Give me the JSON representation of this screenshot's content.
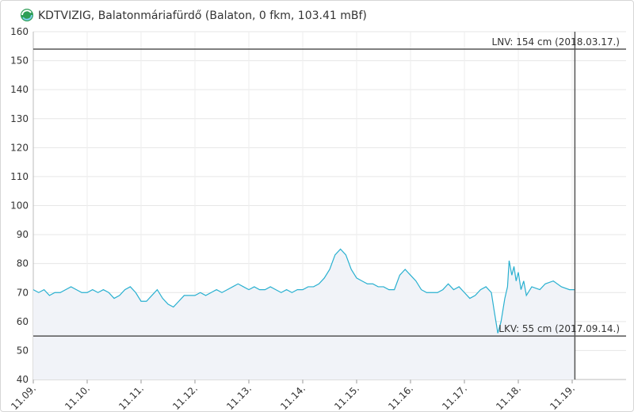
{
  "chart_data": {
    "type": "line",
    "title": "KDTVIZIG, Balatonmáriafürdő (Balaton, 0 fkm, 103.41 mBf)",
    "x": [
      0,
      0.1,
      0.2,
      0.3,
      0.4,
      0.5,
      0.6,
      0.7,
      0.8,
      0.9,
      1.0,
      1.1,
      1.2,
      1.3,
      1.4,
      1.5,
      1.6,
      1.7,
      1.8,
      1.9,
      2.0,
      2.1,
      2.2,
      2.3,
      2.4,
      2.5,
      2.6,
      2.7,
      2.8,
      2.9,
      3.0,
      3.1,
      3.2,
      3.3,
      3.4,
      3.5,
      3.6,
      3.7,
      3.8,
      3.9,
      4.0,
      4.1,
      4.2,
      4.3,
      4.4,
      4.5,
      4.6,
      4.7,
      4.8,
      4.9,
      5.0,
      5.1,
      5.2,
      5.3,
      5.4,
      5.5,
      5.6,
      5.7,
      5.8,
      5.9,
      6.0,
      6.1,
      6.2,
      6.3,
      6.4,
      6.5,
      6.6,
      6.7,
      6.8,
      6.9,
      7.0,
      7.1,
      7.2,
      7.3,
      7.4,
      7.5,
      7.6,
      7.7,
      7.8,
      7.9,
      8.0,
      8.1,
      8.2,
      8.3,
      8.4,
      8.5,
      8.55,
      8.62,
      8.68,
      8.75,
      8.8,
      8.83,
      8.88,
      8.92,
      8.96,
      9.0,
      9.05,
      9.1,
      9.15,
      9.25,
      9.4,
      9.5,
      9.65,
      9.8,
      9.95,
      10.05
    ],
    "series": [
      {
        "color": "#29b0d0",
        "values": [
          71,
          70,
          71,
          69,
          70,
          70,
          71,
          72,
          71,
          70,
          70,
          71,
          70,
          71,
          70,
          68,
          69,
          71,
          72,
          70,
          67,
          67,
          69,
          71,
          68,
          66,
          65,
          67,
          69,
          69,
          69,
          70,
          69,
          70,
          71,
          70,
          71,
          72,
          73,
          72,
          71,
          72,
          71,
          71,
          72,
          71,
          70,
          71,
          70,
          71,
          71,
          72,
          72,
          73,
          75,
          78,
          83,
          85,
          83,
          78,
          75,
          74,
          73,
          73,
          72,
          72,
          71,
          71,
          76,
          78,
          76,
          74,
          71,
          70,
          70,
          70,
          71,
          73,
          71,
          72,
          70,
          68,
          69,
          71,
          72,
          70,
          64,
          56,
          60,
          68,
          72,
          81,
          76,
          79,
          74,
          77,
          71,
          74,
          69,
          72,
          71,
          73,
          74,
          72,
          71,
          71
        ]
      }
    ],
    "xlim": [
      0,
      11
    ],
    "xticks": [
      {
        "value": 0,
        "label": "11.09."
      },
      {
        "value": 1,
        "label": "11.10."
      },
      {
        "value": 2,
        "label": "11.11."
      },
      {
        "value": 3,
        "label": "11.12."
      },
      {
        "value": 4,
        "label": "11.13."
      },
      {
        "value": 5,
        "label": "11.14."
      },
      {
        "value": 6,
        "label": "11.15."
      },
      {
        "value": 7,
        "label": "11.16."
      },
      {
        "value": 8,
        "label": "11.17."
      },
      {
        "value": 9,
        "label": "11.18."
      },
      {
        "value": 10,
        "label": "11.19."
      }
    ],
    "ylim": [
      40,
      160
    ],
    "yticks": [
      40,
      50,
      60,
      70,
      80,
      90,
      100,
      110,
      120,
      130,
      140,
      150,
      160
    ],
    "grid": true,
    "reference_lines": [
      {
        "value": 154,
        "label": "LNV: 154 cm (2018.03.17.)"
      },
      {
        "value": 55,
        "label": "LKV: 55 cm (2017.09.14.)"
      }
    ]
  }
}
